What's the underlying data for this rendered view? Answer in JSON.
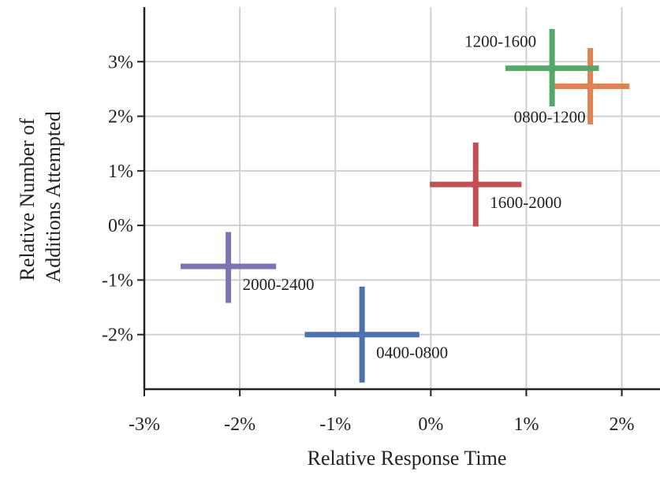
{
  "chart_data": {
    "type": "scatter",
    "title": "",
    "xlabel": "Relative Response Time",
    "ylabel": [
      "Relative Number of",
      "Additions Attempted"
    ],
    "xlim": [
      -3,
      2.4
    ],
    "ylim": [
      -3,
      4
    ],
    "x_ticks": [
      {
        "value": -3,
        "label": "-3%"
      },
      {
        "value": -2,
        "label": "-2%"
      },
      {
        "value": -1,
        "label": "-1%"
      },
      {
        "value": 0,
        "label": "0%"
      },
      {
        "value": 1,
        "label": "1%"
      },
      {
        "value": 2,
        "label": "2%"
      }
    ],
    "y_ticks": [
      {
        "value": -2,
        "label": "-2%"
      },
      {
        "value": -1,
        "label": "-1%"
      },
      {
        "value": 0,
        "label": "0%"
      },
      {
        "value": 1,
        "label": "1%"
      },
      {
        "value": 2,
        "label": "2%"
      },
      {
        "value": 3,
        "label": "3%"
      }
    ],
    "grid": true,
    "error_bars": true,
    "points": [
      {
        "label": "0400-0800",
        "x": -0.72,
        "y": -2.0,
        "x_low": -1.32,
        "x_high": -0.12,
        "y_low": -2.88,
        "y_high": -1.12,
        "color": "#4c72b0",
        "label_pos": "below-right"
      },
      {
        "label": "0800-1200",
        "x": 1.67,
        "y": 2.55,
        "x_low": 1.25,
        "x_high": 2.08,
        "y_low": 1.85,
        "y_high": 3.25,
        "color": "#dd8452",
        "label_pos": "below-left"
      },
      {
        "label": "1200-1600",
        "x": 1.27,
        "y": 2.88,
        "x_low": 0.78,
        "x_high": 1.76,
        "y_low": 2.18,
        "y_high": 3.6,
        "color": "#55a868",
        "label_pos": "above-left"
      },
      {
        "label": "1600-2000",
        "x": 0.47,
        "y": 0.75,
        "x_low": -0.01,
        "x_high": 0.95,
        "y_low": -0.02,
        "y_high": 1.52,
        "color": "#c44e52",
        "label_pos": "below-right"
      },
      {
        "label": "2000-2400",
        "x": -2.12,
        "y": -0.75,
        "x_low": -2.62,
        "x_high": -1.62,
        "y_low": -1.42,
        "y_high": -0.12,
        "color": "#8172b3",
        "label_pos": "below-right"
      }
    ]
  }
}
